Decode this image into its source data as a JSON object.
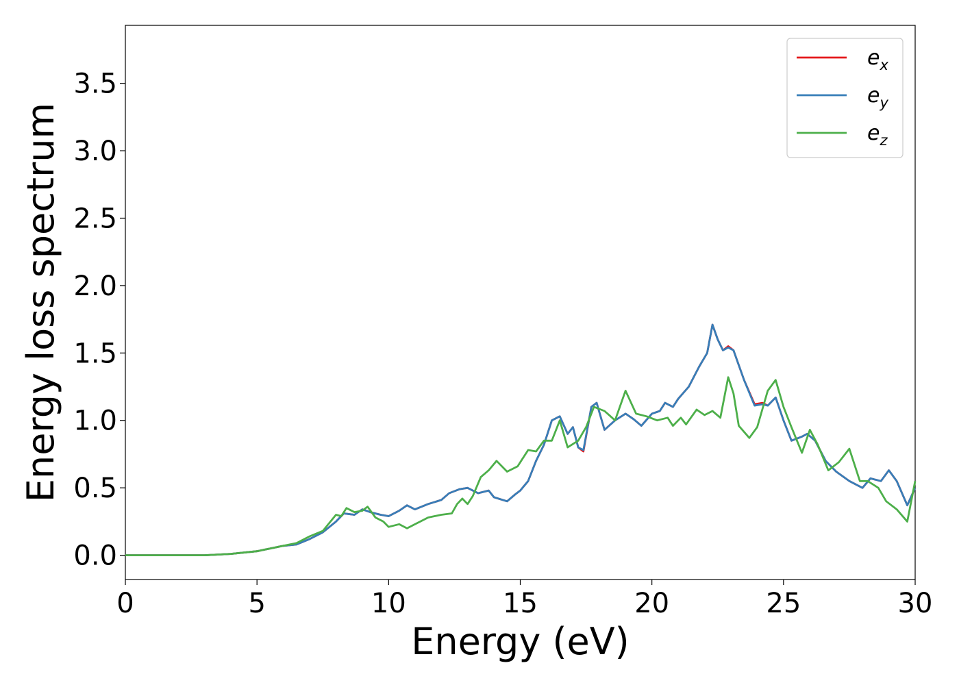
{
  "chart_data": {
    "type": "line",
    "xlabel": "Energy (eV)",
    "ylabel": "Energy loss spectrum",
    "xlim": [
      0,
      30
    ],
    "ylim": [
      -0.18,
      3.93
    ],
    "xticks": [
      0,
      5,
      10,
      15,
      20,
      25,
      30
    ],
    "xtick_labels": [
      "0",
      "5",
      "10",
      "15",
      "20",
      "25",
      "30"
    ],
    "yticks": [
      0.0,
      0.5,
      1.0,
      1.5,
      2.0,
      2.5,
      3.0,
      3.5
    ],
    "ytick_labels": [
      "0.0",
      "0.5",
      "1.0",
      "1.5",
      "2.0",
      "2.5",
      "3.0",
      "3.5"
    ],
    "grid": false,
    "legend_position": "top-right",
    "series": [
      {
        "name": "e_x",
        "color": "#e41a1c",
        "points": [
          [
            0,
            0
          ],
          [
            3,
            0.0
          ],
          [
            4,
            0.01
          ],
          [
            5,
            0.03
          ],
          [
            5.5,
            0.05
          ],
          [
            6,
            0.07
          ],
          [
            6.5,
            0.08
          ],
          [
            7,
            0.12
          ],
          [
            7.5,
            0.17
          ],
          [
            8,
            0.25
          ],
          [
            8.3,
            0.31
          ],
          [
            8.7,
            0.3
          ],
          [
            9,
            0.34
          ],
          [
            9.3,
            0.32
          ],
          [
            9.7,
            0.3
          ],
          [
            10,
            0.29
          ],
          [
            10.4,
            0.33
          ],
          [
            10.7,
            0.37
          ],
          [
            11,
            0.34
          ],
          [
            11.5,
            0.38
          ],
          [
            12,
            0.41
          ],
          [
            12.3,
            0.46
          ],
          [
            12.7,
            0.49
          ],
          [
            13,
            0.5
          ],
          [
            13.4,
            0.46
          ],
          [
            13.8,
            0.48
          ],
          [
            14,
            0.43
          ],
          [
            14.5,
            0.4
          ],
          [
            14.8,
            0.45
          ],
          [
            15,
            0.48
          ],
          [
            15.3,
            0.55
          ],
          [
            15.6,
            0.7
          ],
          [
            15.9,
            0.82
          ],
          [
            16.2,
            1.0
          ],
          [
            16.5,
            1.03
          ],
          [
            16.8,
            0.9
          ],
          [
            17,
            0.95
          ],
          [
            17.2,
            0.8
          ],
          [
            17.4,
            0.77
          ],
          [
            17.7,
            1.1
          ],
          [
            17.9,
            1.13
          ],
          [
            18.2,
            0.93
          ],
          [
            18.6,
            1.0
          ],
          [
            19,
            1.05
          ],
          [
            19.3,
            1.01
          ],
          [
            19.6,
            0.96
          ],
          [
            20,
            1.05
          ],
          [
            20.3,
            1.07
          ],
          [
            20.5,
            1.13
          ],
          [
            20.8,
            1.1
          ],
          [
            21,
            1.16
          ],
          [
            21.4,
            1.25
          ],
          [
            21.8,
            1.4
          ],
          [
            22.1,
            1.5
          ],
          [
            22.3,
            1.71
          ],
          [
            22.5,
            1.6
          ],
          [
            22.7,
            1.52
          ],
          [
            22.9,
            1.55
          ],
          [
            23.1,
            1.52
          ],
          [
            23.5,
            1.3
          ],
          [
            23.9,
            1.12
          ],
          [
            24.2,
            1.13
          ],
          [
            24.4,
            1.11
          ],
          [
            24.7,
            1.17
          ],
          [
            25,
            1.0
          ],
          [
            25.3,
            0.85
          ],
          [
            25.7,
            0.88
          ],
          [
            25.9,
            0.9
          ],
          [
            26.2,
            0.85
          ],
          [
            26.6,
            0.7
          ],
          [
            27,
            0.62
          ],
          [
            27.5,
            0.55
          ],
          [
            28,
            0.5
          ],
          [
            28.3,
            0.57
          ],
          [
            28.7,
            0.55
          ],
          [
            29,
            0.63
          ],
          [
            29.3,
            0.55
          ],
          [
            29.7,
            0.37
          ],
          [
            30,
            0.5
          ]
        ]
      },
      {
        "name": "e_y",
        "color": "#377eb8",
        "points": [
          [
            0,
            0
          ],
          [
            3,
            0.0
          ],
          [
            4,
            0.01
          ],
          [
            5,
            0.03
          ],
          [
            5.5,
            0.05
          ],
          [
            6,
            0.07
          ],
          [
            6.5,
            0.08
          ],
          [
            7,
            0.12
          ],
          [
            7.5,
            0.17
          ],
          [
            8,
            0.25
          ],
          [
            8.3,
            0.31
          ],
          [
            8.7,
            0.3
          ],
          [
            9,
            0.34
          ],
          [
            9.3,
            0.32
          ],
          [
            9.7,
            0.3
          ],
          [
            10,
            0.29
          ],
          [
            10.4,
            0.33
          ],
          [
            10.7,
            0.37
          ],
          [
            11,
            0.34
          ],
          [
            11.5,
            0.38
          ],
          [
            12,
            0.41
          ],
          [
            12.3,
            0.46
          ],
          [
            12.7,
            0.49
          ],
          [
            13,
            0.5
          ],
          [
            13.4,
            0.46
          ],
          [
            13.8,
            0.48
          ],
          [
            14,
            0.43
          ],
          [
            14.5,
            0.4
          ],
          [
            14.8,
            0.45
          ],
          [
            15,
            0.48
          ],
          [
            15.3,
            0.55
          ],
          [
            15.6,
            0.7
          ],
          [
            15.9,
            0.82
          ],
          [
            16.2,
            1.0
          ],
          [
            16.5,
            1.03
          ],
          [
            16.8,
            0.9
          ],
          [
            17,
            0.95
          ],
          [
            17.2,
            0.8
          ],
          [
            17.4,
            0.78
          ],
          [
            17.7,
            1.1
          ],
          [
            17.9,
            1.13
          ],
          [
            18.2,
            0.93
          ],
          [
            18.6,
            1.0
          ],
          [
            19,
            1.05
          ],
          [
            19.3,
            1.01
          ],
          [
            19.6,
            0.96
          ],
          [
            20,
            1.05
          ],
          [
            20.3,
            1.07
          ],
          [
            20.5,
            1.13
          ],
          [
            20.8,
            1.1
          ],
          [
            21,
            1.16
          ],
          [
            21.4,
            1.25
          ],
          [
            21.8,
            1.4
          ],
          [
            22.1,
            1.5
          ],
          [
            22.3,
            1.71
          ],
          [
            22.5,
            1.6
          ],
          [
            22.7,
            1.52
          ],
          [
            22.9,
            1.54
          ],
          [
            23.1,
            1.52
          ],
          [
            23.5,
            1.3
          ],
          [
            23.9,
            1.11
          ],
          [
            24.2,
            1.12
          ],
          [
            24.4,
            1.11
          ],
          [
            24.7,
            1.17
          ],
          [
            25,
            1.0
          ],
          [
            25.3,
            0.85
          ],
          [
            25.7,
            0.88
          ],
          [
            25.9,
            0.9
          ],
          [
            26.2,
            0.85
          ],
          [
            26.6,
            0.7
          ],
          [
            27,
            0.62
          ],
          [
            27.5,
            0.55
          ],
          [
            28,
            0.5
          ],
          [
            28.3,
            0.57
          ],
          [
            28.7,
            0.55
          ],
          [
            29,
            0.63
          ],
          [
            29.3,
            0.55
          ],
          [
            29.7,
            0.37
          ],
          [
            30,
            0.5
          ]
        ]
      },
      {
        "name": "e_z",
        "color": "#4daf4a",
        "points": [
          [
            0,
            0
          ],
          [
            3,
            0.0
          ],
          [
            4,
            0.01
          ],
          [
            5,
            0.03
          ],
          [
            5.5,
            0.05
          ],
          [
            6,
            0.07
          ],
          [
            6.5,
            0.09
          ],
          [
            7,
            0.14
          ],
          [
            7.5,
            0.18
          ],
          [
            8,
            0.3
          ],
          [
            8.2,
            0.29
          ],
          [
            8.4,
            0.35
          ],
          [
            8.7,
            0.32
          ],
          [
            9,
            0.33
          ],
          [
            9.2,
            0.36
          ],
          [
            9.5,
            0.28
          ],
          [
            9.8,
            0.25
          ],
          [
            10,
            0.21
          ],
          [
            10.4,
            0.23
          ],
          [
            10.7,
            0.2
          ],
          [
            11,
            0.23
          ],
          [
            11.5,
            0.28
          ],
          [
            12,
            0.3
          ],
          [
            12.4,
            0.31
          ],
          [
            12.6,
            0.38
          ],
          [
            12.8,
            0.42
          ],
          [
            13,
            0.38
          ],
          [
            13.2,
            0.44
          ],
          [
            13.5,
            0.58
          ],
          [
            13.8,
            0.63
          ],
          [
            14.1,
            0.7
          ],
          [
            14.5,
            0.62
          ],
          [
            14.9,
            0.66
          ],
          [
            15.3,
            0.78
          ],
          [
            15.6,
            0.77
          ],
          [
            15.9,
            0.85
          ],
          [
            16.2,
            0.85
          ],
          [
            16.5,
            1.0
          ],
          [
            16.8,
            0.8
          ],
          [
            17.2,
            0.85
          ],
          [
            17.5,
            0.95
          ],
          [
            17.8,
            1.1
          ],
          [
            18.2,
            1.07
          ],
          [
            18.6,
            1.0
          ],
          [
            19,
            1.22
          ],
          [
            19.4,
            1.05
          ],
          [
            19.8,
            1.03
          ],
          [
            20.2,
            1.0
          ],
          [
            20.6,
            1.02
          ],
          [
            20.8,
            0.96
          ],
          [
            21.1,
            1.02
          ],
          [
            21.3,
            0.97
          ],
          [
            21.7,
            1.08
          ],
          [
            22,
            1.04
          ],
          [
            22.3,
            1.07
          ],
          [
            22.6,
            1.02
          ],
          [
            22.9,
            1.32
          ],
          [
            23.1,
            1.2
          ],
          [
            23.3,
            0.96
          ],
          [
            23.7,
            0.87
          ],
          [
            24,
            0.95
          ],
          [
            24.4,
            1.22
          ],
          [
            24.7,
            1.3
          ],
          [
            25,
            1.1
          ],
          [
            25.3,
            0.95
          ],
          [
            25.7,
            0.76
          ],
          [
            26,
            0.93
          ],
          [
            26.3,
            0.82
          ],
          [
            26.7,
            0.63
          ],
          [
            27.1,
            0.69
          ],
          [
            27.5,
            0.79
          ],
          [
            27.9,
            0.55
          ],
          [
            28.2,
            0.55
          ],
          [
            28.6,
            0.5
          ],
          [
            28.9,
            0.4
          ],
          [
            29.3,
            0.34
          ],
          [
            29.7,
            0.25
          ],
          [
            30,
            0.55
          ]
        ]
      }
    ]
  }
}
